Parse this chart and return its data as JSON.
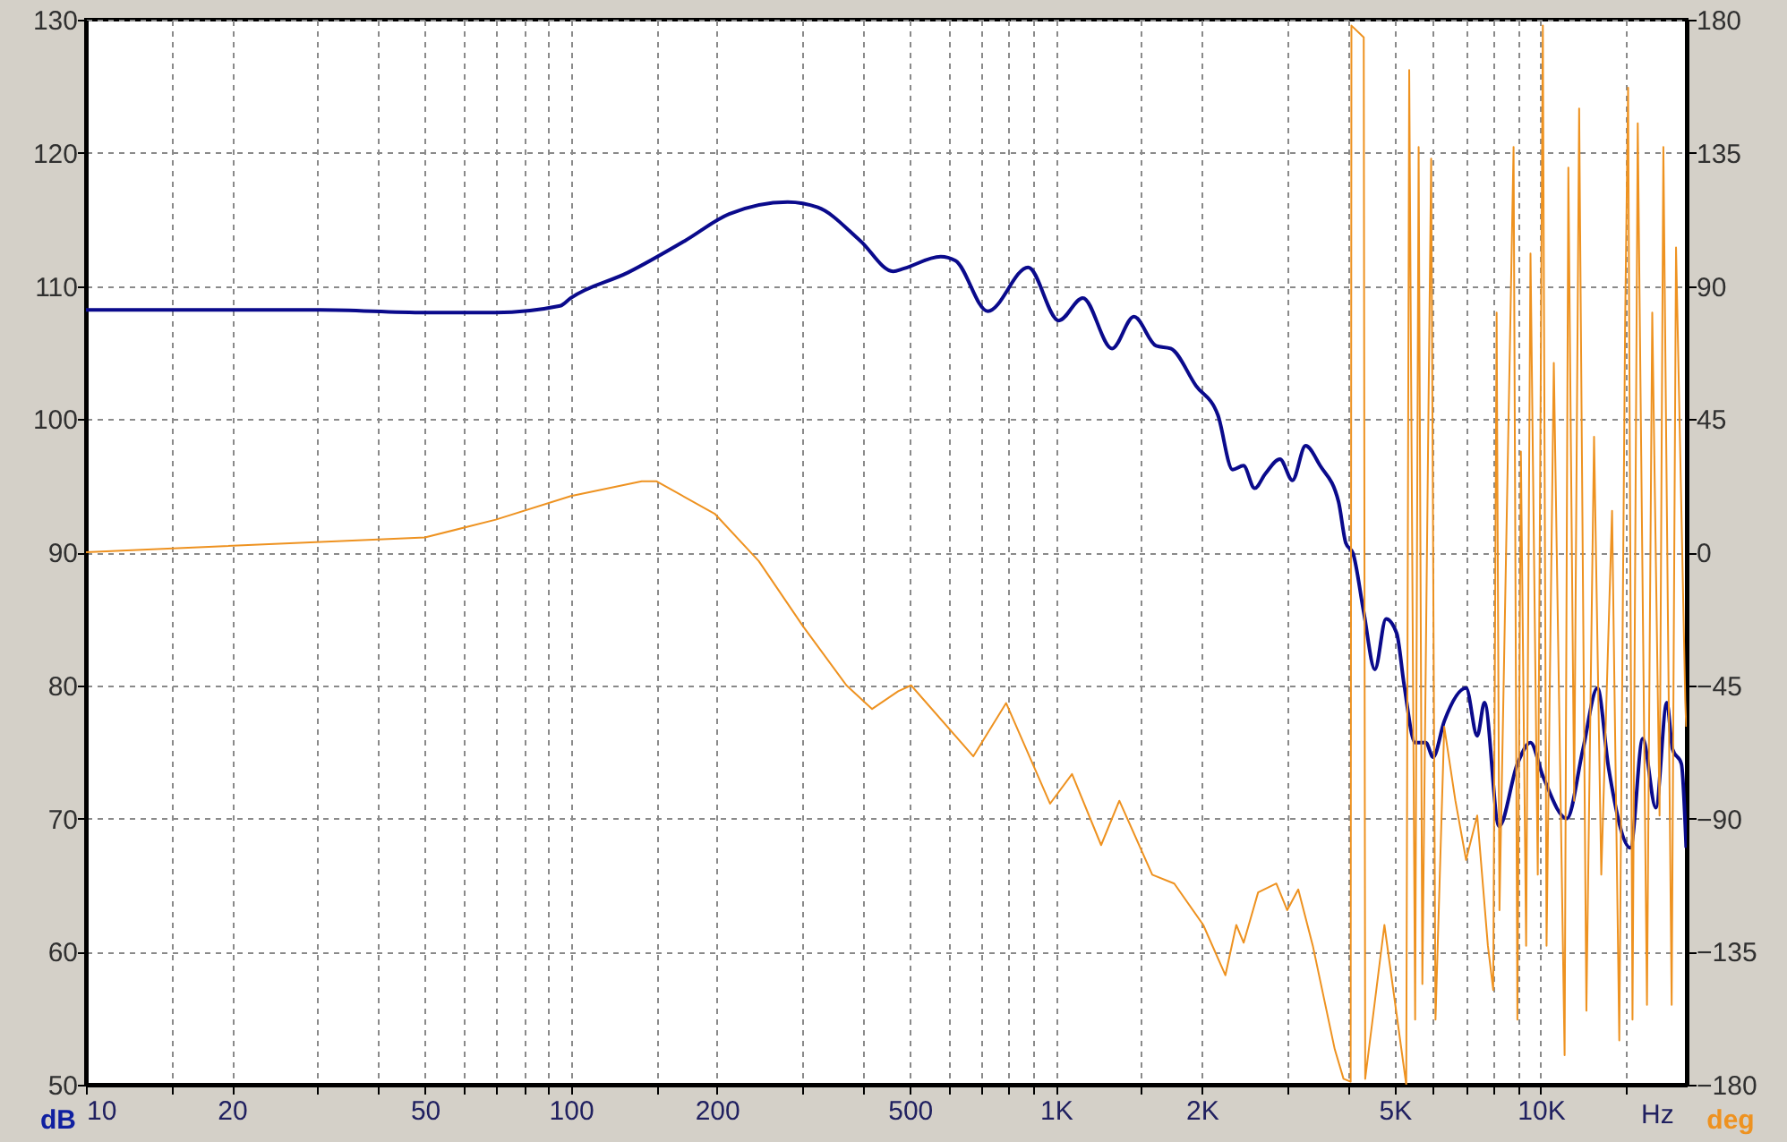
{
  "chart_data": {
    "type": "line",
    "xlabel": "Hz",
    "ylabel": "dB",
    "y2label": "deg",
    "log": "x",
    "grid": true,
    "marker": "none",
    "line_style": "solid",
    "xlim": [
      10,
      20000
    ],
    "ylim": [
      50,
      130
    ],
    "y2lim": [
      -180,
      180
    ],
    "xticks": [
      10,
      {
        "value": 15,
        "label": null
      },
      20,
      {
        "value": 30,
        "label": null
      },
      {
        "value": 40,
        "label": null
      },
      50,
      {
        "value": 60,
        "label": null
      },
      {
        "value": 70,
        "label": null
      },
      {
        "value": 80,
        "label": null
      },
      {
        "value": 90,
        "label": null
      },
      100,
      {
        "value": 150,
        "label": null
      },
      200,
      {
        "value": 300,
        "label": null
      },
      {
        "value": 400,
        "label": null
      },
      500,
      {
        "value": 600,
        "label": null
      },
      {
        "value": 700,
        "label": null
      },
      {
        "value": 800,
        "label": null
      },
      {
        "value": 900,
        "label": null
      },
      {
        "value": 1000,
        "label": "1K"
      },
      {
        "value": 1500,
        "label": null
      },
      {
        "value": 2000,
        "label": "2K"
      },
      {
        "value": 3000,
        "label": null
      },
      {
        "value": 4000,
        "label": null
      },
      {
        "value": 5000,
        "label": "5K"
      },
      {
        "value": 6000,
        "label": null
      },
      {
        "value": 7000,
        "label": null
      },
      {
        "value": 8000,
        "label": null
      },
      {
        "value": 9000,
        "label": null
      },
      {
        "value": 10000,
        "label": "10K"
      },
      {
        "value": 15000,
        "label": null
      }
    ],
    "yticks": [
      50,
      60,
      70,
      80,
      90,
      100,
      110,
      120,
      130
    ],
    "y2ticks": [
      -180,
      -135,
      -90,
      -45,
      0,
      45,
      90,
      135,
      180
    ],
    "series": [
      {
        "color": "#0a0a8c",
        "x": [
          10,
          30.4,
          50,
          70,
          95,
          100,
          131,
          172,
          212,
          280,
          323,
          395,
          462,
          485,
          579,
          621,
          724,
          877,
          1014,
          1137,
          1306,
          1449,
          1610,
          1725,
          1946,
          2159,
          2315,
          2438,
          2570,
          2705,
          2899,
          3076,
          3273,
          3508,
          3828,
          3962,
          4102,
          4315,
          4550,
          4797,
          5047,
          5224,
          5508,
          5794,
          5998,
          6324,
          7015,
          7396,
          7656,
          8204,
          8950,
          9525,
          10100,
          11320,
          12220,
          13090,
          13800,
          15310,
          16230,
          17270,
          18200,
          18700,
          19500,
          19950
        ],
        "values": [
          108.2,
          108.2,
          108.0,
          108.0,
          108.5,
          109.1,
          111.0,
          113.4,
          115.4,
          116.3,
          115.9,
          113.4,
          111.1,
          111.3,
          112.2,
          111.9,
          108.1,
          111.4,
          107.4,
          109.1,
          105.3,
          107.7,
          105.5,
          105.3,
          102.5,
          100.3,
          96.2,
          96.5,
          94.8,
          95.9,
          97.0,
          95.4,
          98.0,
          96.5,
          93.8,
          90.7,
          89.9,
          85.5,
          81.2,
          85.0,
          83.9,
          80.1,
          75.7,
          75.7,
          74.6,
          77.3,
          79.8,
          76.2,
          78.7,
          69.4,
          74.1,
          75.7,
          73.2,
          70.0,
          75.2,
          79.8,
          73.8,
          67.8,
          76.0,
          70.8,
          78.7,
          75.2,
          74.1,
          67.8
        ]
      },
      {
        "color": "#ee9220",
        "axis": "y2",
        "x": [
          10,
          18.8,
          50,
          70,
          100,
          140,
          150,
          198,
          244,
          301,
          370,
          418,
          473,
          503,
          676,
          790,
          973,
          1080,
          1240,
          1352,
          1581,
          1755,
          2014,
          2237,
          2356,
          2440,
          2613,
          2849,
          3000,
          3162,
          3388,
          3760,
          3920,
          4055,
          4070,
          4315,
          4345,
          4760,
          5280,
          5355,
          5508,
          5600,
          5700,
          5943,
          6067,
          6324,
          6668,
          7015,
          7396,
          7780,
          7980,
          8110,
          8220,
          8790,
          8950,
          9100,
          9330,
          9525,
          9860,
          10100,
          10280,
          10640,
          11200,
          11400,
          11720,
          12000,
          12420,
          12880,
          13330,
          14030,
          14520,
          14930,
          15140,
          15460,
          15850,
          16560,
          16980,
          17580,
          17900,
          18620,
          19010,
          19860,
          19950
        ],
        "values": [
          0,
          2,
          5,
          11,
          19,
          24,
          24,
          13,
          -3,
          -25,
          -45,
          -53,
          -47,
          -45,
          -69,
          -51,
          -85,
          -75,
          -99,
          -84,
          -109,
          -112,
          -126,
          -143,
          -126,
          -132,
          -115,
          -112,
          -121,
          -114,
          -133,
          -168,
          -178,
          -179,
          178,
          174,
          -178,
          -126,
          -180,
          163,
          -158,
          137,
          -146,
          133,
          -158,
          -59,
          -84,
          -104,
          -89,
          -133,
          -148,
          81,
          -121,
          137,
          -158,
          34,
          -133,
          101,
          -109,
          178,
          -133,
          64,
          -170,
          130,
          -84,
          150,
          -155,
          39,
          -109,
          14,
          -165,
          78,
          157,
          -158,
          145,
          -153,
          81,
          -89,
          137,
          -153,
          103,
          -50,
          -59
        ]
      }
    ]
  }
}
